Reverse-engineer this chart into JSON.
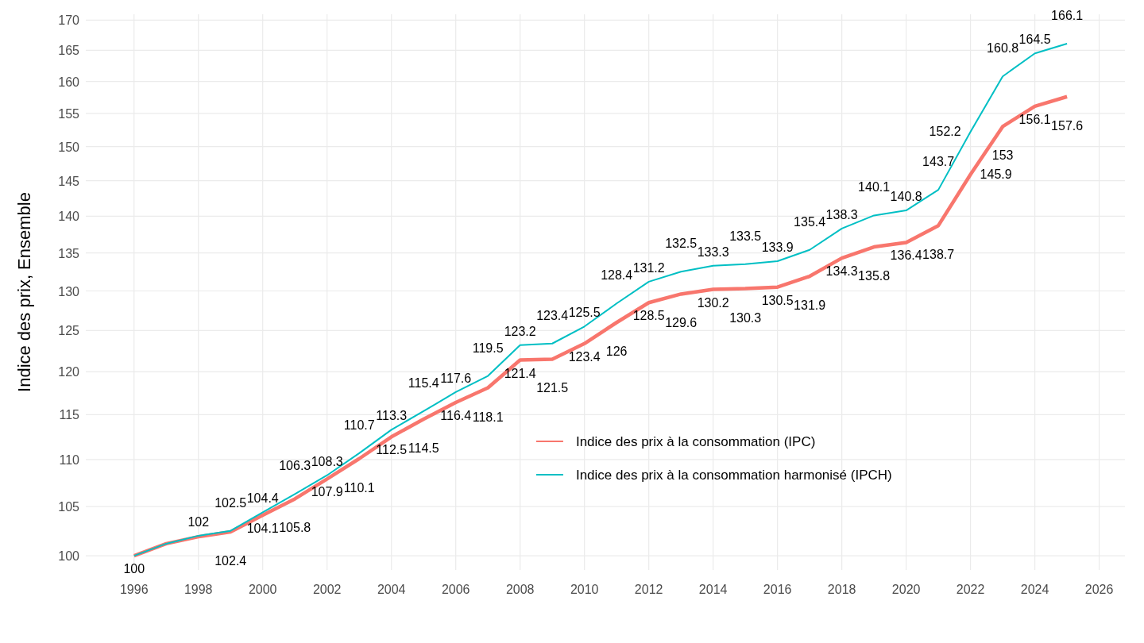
{
  "chart_data": {
    "type": "line",
    "ylabel": "Indice des prix, Ensemble",
    "log": "y",
    "grid": true,
    "legend": "bottom right",
    "line_style": "solid",
    "x": [
      1996,
      1997,
      1998,
      1999,
      2000,
      2001,
      2002,
      2003,
      2004,
      2005,
      2006,
      2007,
      2008,
      2009,
      2010,
      2011,
      2012,
      2013,
      2014,
      2015,
      2016,
      2017,
      2018,
      2019,
      2020,
      2021,
      2022,
      2023,
      2024,
      2025
    ],
    "xlim": [
      1994.5,
      2026.8
    ],
    "xticks": [
      1996,
      1998,
      2000,
      2002,
      2004,
      2006,
      2008,
      2010,
      2012,
      2014,
      2016,
      2018,
      2020,
      2022,
      2024,
      2026
    ],
    "ylim": [
      98.6,
      171
    ],
    "yticks": [
      100,
      105,
      110,
      115,
      120,
      125,
      130,
      135,
      140,
      145,
      150,
      155,
      160,
      165,
      170
    ],
    "series": [
      {
        "name": "Indice des prix à la consommation (IPC)",
        "color": "#f8766d",
        "values": [
          100,
          101.2,
          101.9,
          102.4,
          104.1,
          105.8,
          107.9,
          110.1,
          112.5,
          114.5,
          116.4,
          118.1,
          121.4,
          121.5,
          123.4,
          126,
          128.5,
          129.6,
          130.2,
          130.3,
          130.5,
          131.9,
          134.3,
          135.8,
          136.4,
          138.7,
          145.9,
          153,
          156.1,
          157.6
        ],
        "value_labels": [
          "100",
          null,
          null,
          "102.4",
          "104.1",
          "105.8",
          "107.9",
          "110.1",
          "112.5",
          "114.5",
          "116.4",
          "118.1",
          "121.4",
          "121.5",
          "123.4",
          "126",
          "128.5",
          "129.6",
          "130.2",
          "130.3",
          "130.5",
          "131.9",
          "134.3",
          "135.8",
          "136.4",
          "138.7",
          "145.9",
          "153",
          "156.1",
          "157.6"
        ]
      },
      {
        "name": "Indice des prix à la consommation harmonisé (IPCH)",
        "color": "#00bfc4",
        "values": [
          100,
          101.2,
          102,
          102.5,
          104.4,
          106.3,
          108.3,
          110.7,
          113.3,
          115.4,
          117.6,
          119.5,
          123.2,
          123.4,
          125.5,
          128.4,
          131.2,
          132.5,
          133.3,
          133.5,
          133.9,
          135.4,
          138.3,
          140.1,
          140.8,
          143.7,
          152.2,
          160.8,
          164.5,
          166.1
        ],
        "value_labels": [
          null,
          null,
          "102",
          "102.5",
          "104.4",
          "106.3",
          "108.3",
          "110.7",
          "113.3",
          "115.4",
          "117.6",
          "119.5",
          "123.2",
          "123.4",
          "125.5",
          "128.4",
          "131.2",
          "132.5",
          "133.3",
          "133.5",
          "133.9",
          "135.4",
          "138.3",
          "140.1",
          "140.8",
          "143.7",
          "152.2",
          "160.8",
          "164.5",
          "166.1"
        ]
      }
    ]
  }
}
